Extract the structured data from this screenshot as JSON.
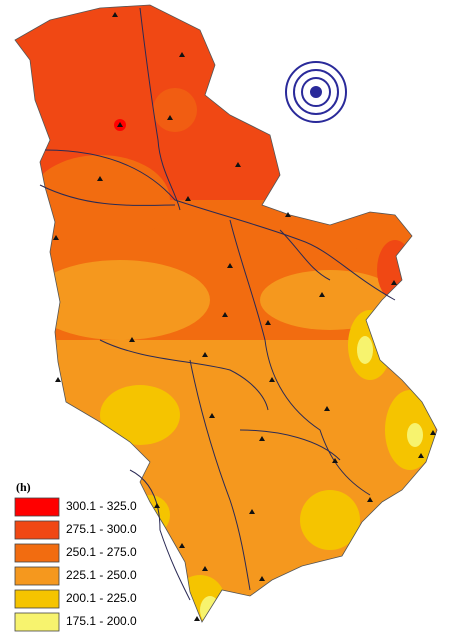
{
  "legend": {
    "title": "(h)",
    "items": [
      {
        "label": "300.1 - 325.0",
        "color": "#ff0000"
      },
      {
        "label": "275.1 - 300.0",
        "color": "#f04814"
      },
      {
        "label": "250.1 - 275.0",
        "color": "#f26c10"
      },
      {
        "label": "225.1 - 250.0",
        "color": "#f5981e"
      },
      {
        "label": "200.1 - 225.0",
        "color": "#f5c400"
      },
      {
        "label": "175.1 - 200.0",
        "color": "#f7f36e"
      }
    ]
  }
}
